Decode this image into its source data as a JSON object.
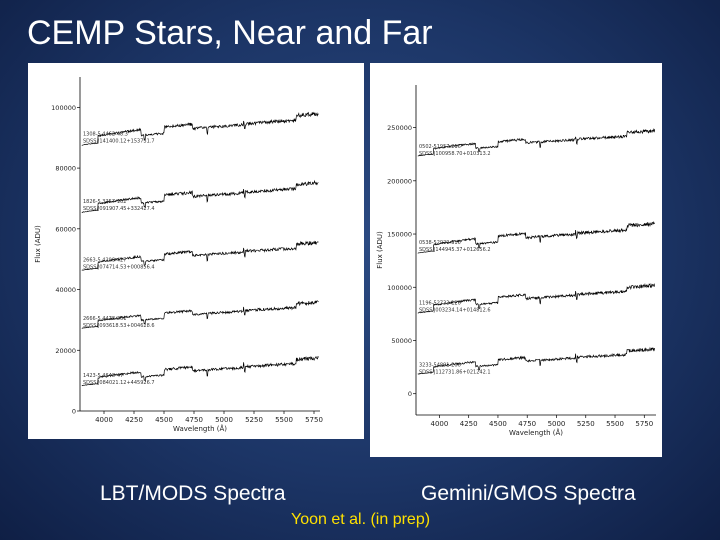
{
  "slide": {
    "title": "CEMP Stars, Near and Far",
    "caption_left": "LBT/MODS Spectra",
    "caption_right": "Gemini/GMOS Spectra",
    "credit": "Yoon et al. (in prep)",
    "colors": {
      "background": "#1c3566",
      "title": "#ffffff",
      "credit": "#ffe100",
      "spectrum": "#000000"
    }
  },
  "chart_data": [
    {
      "type": "line",
      "panel": "LBT/MODS Spectra",
      "xlabel": "Wavelength (Å)",
      "ylabel": "Flux (ADU)",
      "xlim": [
        3800,
        5800
      ],
      "ylim": [
        0,
        110000
      ],
      "xticks": [
        "4000",
        "4250",
        "4500",
        "4750",
        "5000",
        "5250",
        "5500",
        "5750"
      ],
      "yticks": [
        "0",
        "20000",
        "40000",
        "60000",
        "80000",
        "100000"
      ],
      "grid": false,
      "series": [
        {
          "label_lines": [
            "1308-5.4462-48.3",
            "SDSS J141400.12+153731.7"
          ],
          "level": 86000,
          "amp": 17000,
          "seed": 3
        },
        {
          "label_lines": [
            "1826-5.3257-162",
            "SDSS J091907.45+332427.4"
          ],
          "level": 64000,
          "amp": 16000,
          "seed": 11
        },
        {
          "label_lines": [
            "2663-5.4298-427",
            "SDSS J074714.53+000856.4"
          ],
          "level": 45000,
          "amp": 15000,
          "seed": 19
        },
        {
          "label_lines": [
            "2666-5.4478-261",
            "SDSS J093618.53+004628.6"
          ],
          "level": 26000,
          "amp": 14000,
          "seed": 27
        },
        {
          "label_lines": [
            "1423-5.4648-47",
            "SDSS J084021.12+445926.7"
          ],
          "level": 7000,
          "amp": 15000,
          "seed": 35
        }
      ]
    },
    {
      "type": "line",
      "panel": "Gemini/GMOS Spectra",
      "xlabel": "Wavelength (Å)",
      "ylabel": "Flux (ADU)",
      "xlim": [
        3800,
        5850
      ],
      "ylim": [
        -20000,
        290000
      ],
      "xticks": [
        "4000",
        "4250",
        "4500",
        "4750",
        "5000",
        "5250",
        "5500",
        "5750"
      ],
      "yticks": [
        "0",
        "50000",
        "100000",
        "150000",
        "200000",
        "250000"
      ],
      "grid": false,
      "series": [
        {
          "label_lines": [
            "0502-51957-216",
            "SDSS J100958.70+010313.2"
          ],
          "level": 220000,
          "amp": 38000,
          "seed": 5
        },
        {
          "label_lines": [
            "0538-52029-310",
            "SDSS J144945.37+012656.2"
          ],
          "level": 128000,
          "amp": 45000,
          "seed": 13
        },
        {
          "label_lines": [
            "1196-52733-126",
            "SDSS J003234.14+014812.6"
          ],
          "level": 72000,
          "amp": 42000,
          "seed": 21
        },
        {
          "label_lines": [
            "3233-54891-206",
            "SDSS J112731.86+021242.1"
          ],
          "level": 15000,
          "amp": 38000,
          "seed": 29
        }
      ]
    }
  ]
}
